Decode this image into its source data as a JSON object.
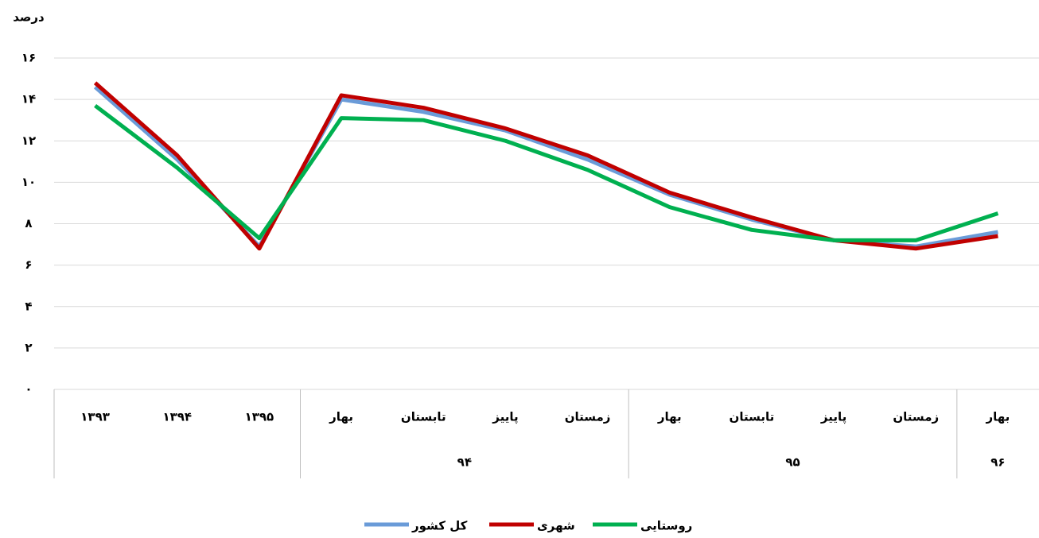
{
  "chart_data": {
    "type": "line",
    "ylabel": "درصد",
    "categories": [
      "۱۳۹۳",
      "۱۳۹۴",
      "۱۳۹۵",
      "بهار",
      "تابستان",
      "پاییز",
      "زمستان",
      "بهار",
      "تابستان",
      "پاییز",
      "زمستان",
      "بهار"
    ],
    "groups": [
      {
        "label": null,
        "count": 3
      },
      {
        "label": "۹۴",
        "count": 4
      },
      {
        "label": "۹۵",
        "count": 4
      },
      {
        "label": "۹۶",
        "count": 1
      }
    ],
    "series": [
      {
        "name": "کل کشور",
        "color": "#6a9bd8",
        "values": [
          14.6,
          11.1,
          6.9,
          14.0,
          13.4,
          12.5,
          11.1,
          9.4,
          8.2,
          7.2,
          6.9,
          7.6
        ]
      },
      {
        "name": "شهری",
        "color": "#c00000",
        "values": [
          14.8,
          11.3,
          6.8,
          14.2,
          13.6,
          12.6,
          11.3,
          9.5,
          8.3,
          7.2,
          6.8,
          7.4
        ]
      },
      {
        "name": "روستایی",
        "color": "#00b050",
        "values": [
          13.7,
          10.7,
          7.3,
          13.1,
          13.0,
          12.0,
          10.6,
          8.8,
          7.7,
          7.2,
          7.2,
          8.5
        ]
      }
    ],
    "ylim": [
      0,
      16
    ],
    "yticks": [
      {
        "value": 0,
        "label": "۰"
      },
      {
        "value": 2,
        "label": "۲"
      },
      {
        "value": 4,
        "label": "۴"
      },
      {
        "value": 6,
        "label": "۶"
      },
      {
        "value": 8,
        "label": "۸"
      },
      {
        "value": 10,
        "label": "۱۰"
      },
      {
        "value": 12,
        "label": "۱۲"
      },
      {
        "value": 14,
        "label": "۱۴"
      },
      {
        "value": 16,
        "label": "۱۶"
      }
    ],
    "grid": true,
    "legend": "bottom"
  }
}
